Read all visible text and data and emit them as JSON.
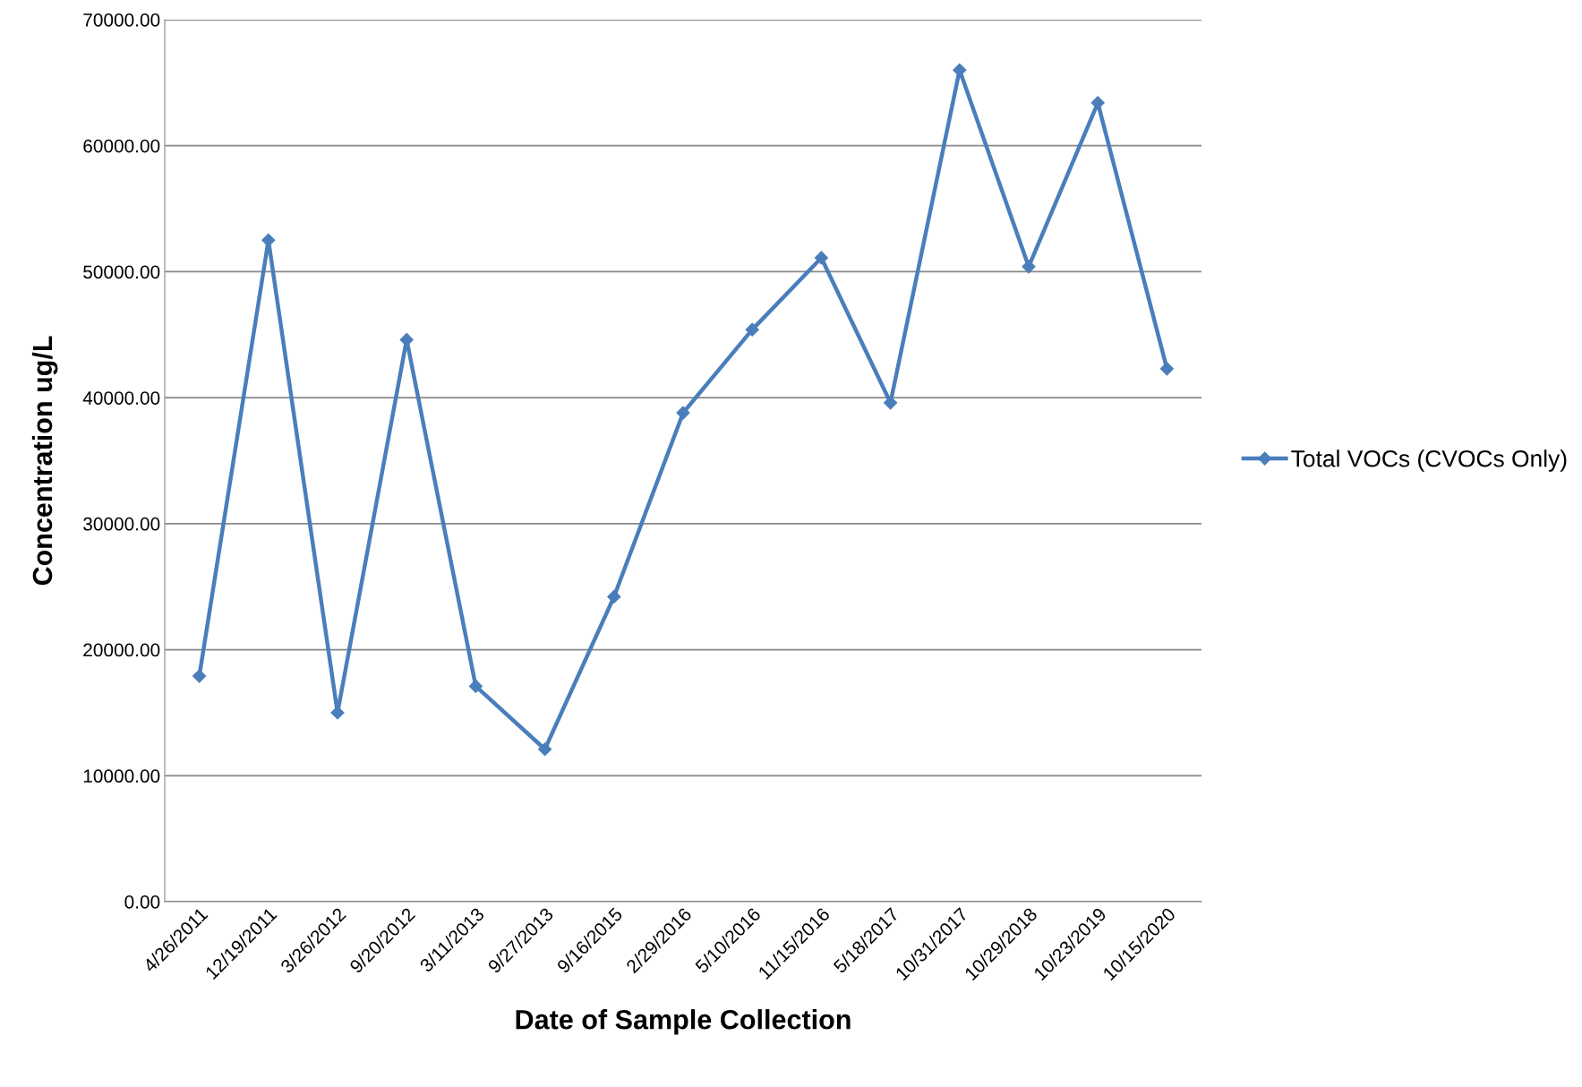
{
  "chart_data": {
    "type": "line",
    "xlabel": "Date of Sample Collection",
    "ylabel": "Concentration ug/L",
    "categories": [
      "4/26/2011",
      "12/19/2011",
      "3/26/2012",
      "9/20/2012",
      "3/11/2013",
      "9/27/2013",
      "9/16/2015",
      "2/29/2016",
      "5/10/2016",
      "11/15/2016",
      "5/18/2017",
      "10/31/2017",
      "10/29/2018",
      "10/23/2019",
      "10/15/2020"
    ],
    "series": [
      {
        "name": "Total VOCs (CVOCs Only)",
        "color": "#4a7ebb",
        "values": [
          17900,
          52500,
          15000,
          44600,
          17100,
          12100,
          24200,
          38800,
          45400,
          51100,
          39600,
          66000,
          50400,
          63400,
          42300
        ]
      }
    ],
    "ylim": [
      0,
      70000
    ],
    "yticks": [
      {
        "value": 0,
        "label": "0.00"
      },
      {
        "value": 10000,
        "label": "10000.00"
      },
      {
        "value": 20000,
        "label": "20000.00"
      },
      {
        "value": 30000,
        "label": "30000.00"
      },
      {
        "value": 40000,
        "label": "40000.00"
      },
      {
        "value": 50000,
        "label": "50000.00"
      },
      {
        "value": 60000,
        "label": "60000.00"
      },
      {
        "value": 70000,
        "label": "70000.00"
      }
    ],
    "grid": "y",
    "legend": "right",
    "marker": "diamond",
    "line_style": "solid"
  }
}
